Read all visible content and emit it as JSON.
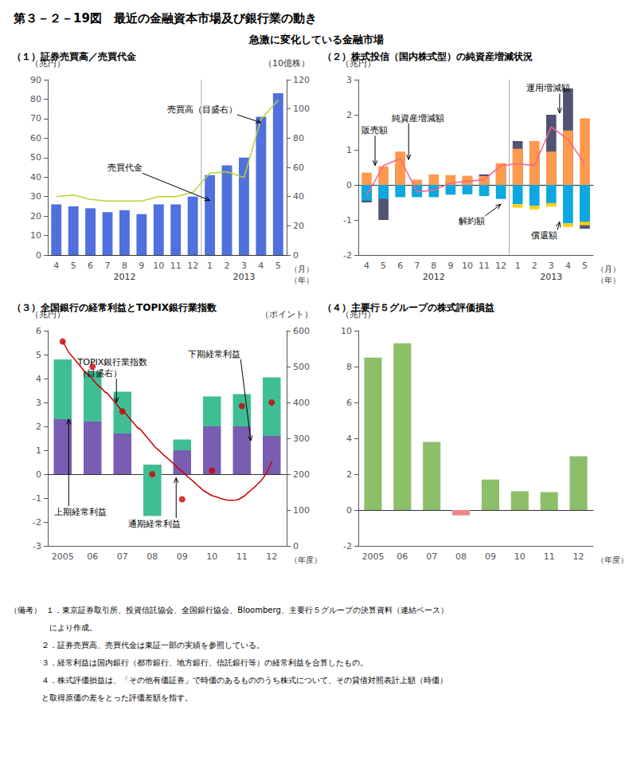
{
  "title": "第３－２－19図　最近の金融資本市場及び銀行業の動き",
  "subtitle": "急激に変化している金融市場",
  "footnote": [
    "（備考）  １．東京証券取引所、投資信託協会、全国銀行協会、Bloomberg、主要行５グループの決算資料（連結ベース）",
    "　　　　　により作成。",
    "　　　　２．証券売買高、売買代金は東証一部の実績を参照している。",
    "　　　　３．経常利益は国内銀行（都市銀行、地方銀行、信託銀行等）の経常利益を合算したもの。",
    "　　　　４．株式評価損益は、「その他有価証券」で時価のあるもののうち株式について、その貸借対照表計上額（時価）",
    "　　　　と取得原価の差をとった評価差額を指す。"
  ],
  "chart_data": [
    {
      "type": "bar",
      "title": "（１）証券売買高／売買代金",
      "ylabel": "（兆円）",
      "y2label": "（10億株）",
      "xlabel": "（月）\n（年）",
      "categories": [
        "4",
        "5",
        "6",
        "7",
        "8",
        "9",
        "10",
        "11",
        "12",
        "1",
        "2",
        "3",
        "4",
        "5"
      ],
      "groups": [
        {
          "label": "2012",
          "count": 9
        },
        {
          "label": "2013",
          "count": 5
        }
      ],
      "series": [
        {
          "name": "売買代金",
          "type": "bar",
          "values": [
            26,
            25,
            24,
            22,
            23,
            21,
            26,
            26,
            30,
            41,
            46,
            50,
            71,
            83
          ]
        },
        {
          "name": "売買高（目盛右）",
          "type": "line",
          "axis": "y2",
          "values": [
            40,
            41,
            38,
            37,
            37,
            37,
            40,
            40,
            43,
            56,
            57,
            53,
            93,
            106
          ]
        }
      ],
      "ylim": [
        0,
        90
      ],
      "yticks": [
        0,
        10,
        20,
        30,
        40,
        50,
        60,
        70,
        80,
        90
      ],
      "y2lim": [
        0,
        120
      ],
      "y2ticks": [
        0,
        20,
        40,
        60,
        80,
        100,
        120
      ],
      "grid": false,
      "annotations": [
        "売買高（目盛右）",
        "売買代金"
      ]
    },
    {
      "type": "bar",
      "title": "（２）株式投信（国内株式型）の純資産増減状況",
      "ylabel": "（兆円）",
      "xlabel": "（月）\n（年）",
      "categories": [
        "4",
        "5",
        "6",
        "7",
        "8",
        "9",
        "10",
        "11",
        "12",
        "1",
        "2",
        "3",
        "4",
        "5"
      ],
      "groups": [
        {
          "label": "2012",
          "count": 9
        },
        {
          "label": "2013",
          "count": 5
        }
      ],
      "series": [
        {
          "name": "運用増減額",
          "type": "bar",
          "values": [
            -0.5,
            -1.0,
            0.6,
            -0.3,
            -0.2,
            0.1,
            0.2,
            0.3,
            0.58,
            1.25,
            0.97,
            2.0,
            2.75,
            -1.25
          ]
        },
        {
          "name": "販売額",
          "type": "bar",
          "values": [
            0.35,
            0.53,
            0.95,
            0.15,
            0.3,
            0.28,
            0.26,
            0.25,
            0.62,
            1.03,
            1.25,
            0.95,
            1.55,
            1.9
          ]
        },
        {
          "name": "解約額",
          "type": "bar",
          "values": [
            -0.45,
            -0.4,
            -0.35,
            -0.35,
            -0.35,
            -0.28,
            -0.27,
            -0.32,
            -0.4,
            -0.55,
            -0.6,
            -0.52,
            -1.1,
            -1.05
          ]
        },
        {
          "name": "償還額",
          "type": "bar",
          "values": [
            0.0,
            0.0,
            0.0,
            0.0,
            0.0,
            0.0,
            0.0,
            0.0,
            0.0,
            -0.1,
            -0.1,
            -0.1,
            -0.1,
            -0.1
          ]
        },
        {
          "name": "純資産増減額",
          "type": "line",
          "values": [
            -0.3,
            0.55,
            0.75,
            -0.2,
            -0.15,
            0.05,
            0.1,
            0.15,
            0.55,
            0.6,
            0.55,
            1.65,
            1.3,
            0.6
          ]
        }
      ],
      "stacked": [
        "解約額",
        "償還額"
      ],
      "ylim": [
        -2,
        3
      ],
      "yticks": [
        -2,
        -1,
        0,
        1,
        2,
        3
      ],
      "grid": false,
      "annotations": [
        "販売額",
        "純資産増減額",
        "運用増減額",
        "解約額",
        "償還額"
      ]
    },
    {
      "type": "bar",
      "title": "（３）全国銀行の経常利益とTOPIX銀行業指数",
      "ylabel": "（兆円）",
      "y2label": "（ポイント）",
      "xlabel": "（年度）",
      "categories": [
        "2005",
        "06",
        "07",
        "08",
        "09",
        "10",
        "11",
        "12"
      ],
      "series": [
        {
          "name": "上期経常利益",
          "type": "bar",
          "values": [
            2.3,
            2.2,
            1.7,
            0.4,
            1.0,
            2.0,
            2.0,
            1.6
          ]
        },
        {
          "name": "下期経常利益",
          "type": "bar",
          "values": [
            2.5,
            2.1,
            1.75,
            -2.15,
            0.45,
            1.25,
            1.35,
            2.45
          ]
        },
        {
          "name": "TOPIX銀行業指数\n（目盛右）",
          "type": "line",
          "axis": "y2",
          "color": "#cc0000",
          "x": [
            0.0,
            0.1,
            0.2,
            0.3,
            0.4,
            0.5,
            0.6,
            0.7,
            0.8,
            0.9,
            1.0,
            1.1,
            1.2,
            1.3,
            1.4,
            1.5,
            1.6,
            1.7,
            1.8,
            1.9,
            2.0,
            2.1,
            2.2,
            2.3,
            2.4,
            2.5,
            2.6,
            2.7,
            2.8,
            2.9,
            3.0,
            3.1,
            3.2,
            3.3,
            3.4,
            3.5,
            3.6,
            3.7,
            3.8,
            3.9,
            4.0,
            4.1,
            4.2,
            4.3,
            4.4,
            4.5,
            4.6,
            4.7,
            4.8,
            4.9,
            5.0,
            5.1,
            5.2,
            5.3,
            5.4,
            5.5,
            5.6,
            5.7,
            5.8,
            5.9,
            6.0,
            6.1,
            6.2,
            6.3,
            6.4,
            6.5,
            6.6,
            6.7,
            6.8,
            6.9,
            7.0
          ],
          "values": [
            570,
            555,
            540,
            530,
            520,
            510,
            500,
            490,
            480,
            475,
            465,
            455,
            445,
            440,
            430,
            425,
            415,
            405,
            395,
            385,
            375,
            370,
            360,
            350,
            340,
            330,
            325,
            315,
            305,
            295,
            285,
            275,
            268,
            260,
            252,
            245,
            238,
            230,
            222,
            215,
            208,
            200,
            192,
            185,
            178,
            170,
            163,
            155,
            150,
            145,
            140,
            138,
            135,
            132,
            130,
            128,
            127,
            127,
            128,
            130,
            135,
            140,
            148,
            155,
            162,
            170,
            178,
            188,
            200,
            215,
            235
          ]
        },
        {
          "type": "scatter",
          "axis": "y2",
          "color": "#cc0000",
          "marker": "circle",
          "values": [
            570,
            500,
            375,
            200,
            130,
            210,
            390,
            400
          ]
        }
      ],
      "stacked": true,
      "ylim": [
        -3,
        6
      ],
      "yticks": [
        -3,
        -2,
        -1,
        0,
        1,
        2,
        3,
        4,
        5,
        6
      ],
      "y2lim": [
        0,
        600
      ],
      "y2ticks": [
        0,
        100,
        200,
        300,
        400,
        500,
        600
      ],
      "grid": false,
      "annotations": [
        "下期経常利益",
        "TOPIX銀行業指数\n（目盛右）",
        "上期経常利益",
        "通期経常利益"
      ]
    },
    {
      "type": "bar",
      "title": "（４）主要行５グループの株式評価損益",
      "ylabel": "（兆円）",
      "xlabel": "（年度）",
      "categories": [
        "2005",
        "06",
        "07",
        "08",
        "09",
        "10",
        "11",
        "12"
      ],
      "values": [
        8.5,
        9.3,
        3.8,
        -0.3,
        1.7,
        1.05,
        1.0,
        3.0
      ],
      "colors": [
        "#8dbf6a",
        "#8dbf6a",
        "#8dbf6a",
        "#ee8888",
        "#8dbf6a",
        "#8dbf6a",
        "#8dbf6a",
        "#8dbf6a"
      ],
      "ylim": [
        -2,
        10
      ],
      "yticks": [
        -2,
        0,
        2,
        4,
        6,
        8,
        10
      ],
      "grid": false
    }
  ]
}
